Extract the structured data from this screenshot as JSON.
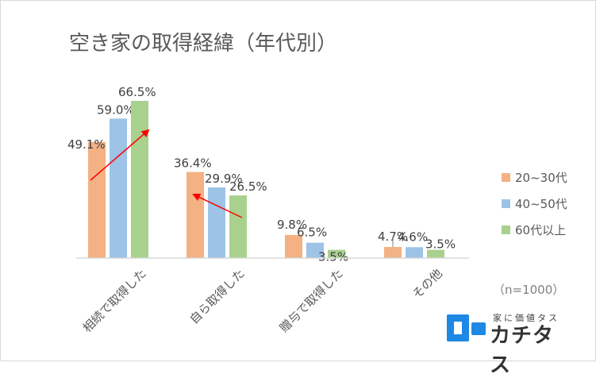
{
  "chart_data": {
    "type": "bar",
    "title": "空き家の取得経緯（年代別）",
    "categories": [
      "相続で取得した",
      "自ら取得した",
      "贈与で取得した",
      "その他"
    ],
    "series": [
      {
        "name": "20~30代",
        "color": "#f4b183",
        "values": [
          49.1,
          36.4,
          9.8,
          4.7
        ],
        "labels": [
          "49.1%",
          "36.4%",
          "9.8%",
          "4.7%"
        ]
      },
      {
        "name": "40~50代",
        "color": "#9dc3e6",
        "values": [
          59.0,
          29.9,
          6.5,
          4.6
        ],
        "labels": [
          "59.0%",
          "29.9%",
          "6.5%",
          "4.6%"
        ]
      },
      {
        "name": "60代以上",
        "color": "#a9d18e",
        "values": [
          66.5,
          26.5,
          3.5,
          3.5
        ],
        "labels": [
          "66.5%",
          "26.5%",
          "3.5%",
          "3.5%"
        ]
      }
    ],
    "ylim": [
      0,
      70
    ],
    "grid": false,
    "legend": "right",
    "note": "（n=1000）",
    "annotations": [
      {
        "type": "arrow",
        "color": "#ff0000",
        "from": {
          "category": 0,
          "value": 46
        },
        "to": {
          "category": 0,
          "value": 59
        },
        "direction": "up"
      },
      {
        "type": "arrow",
        "color": "#ff0000",
        "from": {
          "category": 1,
          "value": 28
        },
        "to": {
          "category": 1,
          "value": 37
        },
        "direction": "up-left"
      }
    ]
  },
  "logo": {
    "tagline": "家に価値タス",
    "name": "カチタス",
    "color": "#1e88e5"
  }
}
